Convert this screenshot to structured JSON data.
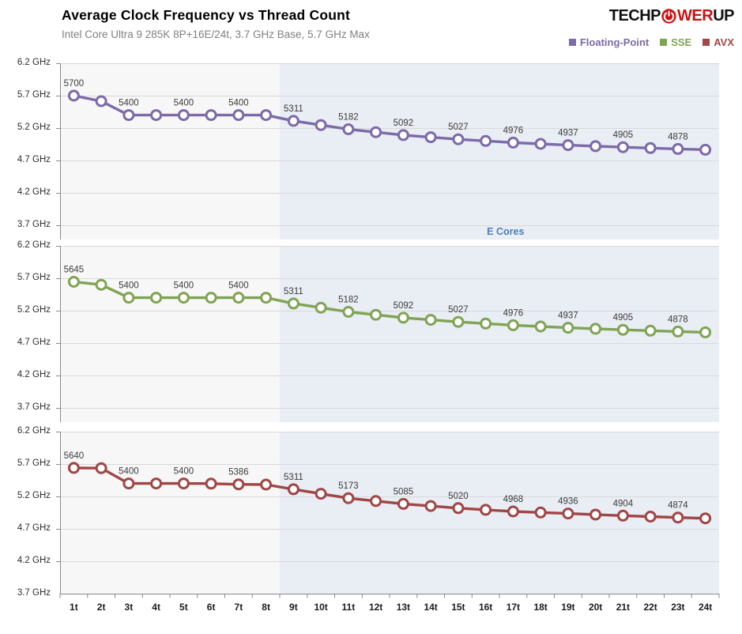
{
  "header": {
    "title": "Average Clock Frequency vs Thread Count",
    "subtitle": "Intel Core Ultra 9 285K 8P+16E/24t, 3.7 GHz Base, 5.7 GHz Max",
    "logo": {
      "prefix": "TECHP",
      "mid": "WER",
      "suffix": "UP",
      "red": "#cc1111",
      "black": "#111111"
    }
  },
  "legend": [
    {
      "label": "Floating-Point",
      "color": "#7d6aa8"
    },
    {
      "label": "SSE",
      "color": "#80a455"
    },
    {
      "label": "AVX",
      "color": "#a04646"
    }
  ],
  "chart_data": {
    "type": "line",
    "x": [
      "1t",
      "2t",
      "3t",
      "4t",
      "5t",
      "6t",
      "7t",
      "8t",
      "9t",
      "10t",
      "11t",
      "12t",
      "13t",
      "14t",
      "15t",
      "16t",
      "17t",
      "18t",
      "19t",
      "20t",
      "21t",
      "22t",
      "23t",
      "24t"
    ],
    "y_ticks": [
      "6.2 GHz",
      "5.7 GHz",
      "5.2 GHz",
      "4.7 GHz",
      "4.2 GHz",
      "3.7 GHz"
    ],
    "ylim": [
      3700,
      6200
    ],
    "unit": "MHz",
    "annotation": "E Cores",
    "ecores_start_index": 8,
    "legend_position": "top-right",
    "grid": true,
    "series": [
      {
        "name": "Floating-Point",
        "color": "#7d6aa8",
        "values": [
          5700,
          5615,
          5400,
          5400,
          5400,
          5400,
          5400,
          5400,
          5311,
          5246,
          5182,
          5137,
          5092,
          5059,
          5027,
          5001,
          4976,
          4956,
          4937,
          4921,
          4905,
          4891,
          4878,
          4866
        ],
        "labels": [
          5700,
          null,
          5400,
          null,
          5400,
          null,
          5400,
          null,
          5311,
          null,
          5182,
          null,
          5092,
          null,
          5027,
          null,
          4976,
          null,
          4937,
          null,
          4905,
          null,
          4878,
          null
        ]
      },
      {
        "name": "SSE",
        "color": "#80a455",
        "values": [
          5645,
          5600,
          5400,
          5400,
          5400,
          5400,
          5400,
          5400,
          5311,
          5246,
          5182,
          5137,
          5092,
          5059,
          5027,
          5001,
          4976,
          4956,
          4937,
          4921,
          4905,
          4891,
          4878,
          4866
        ],
        "labels": [
          5645,
          null,
          5400,
          null,
          5400,
          null,
          5400,
          null,
          5311,
          null,
          5182,
          null,
          5092,
          null,
          5027,
          null,
          4976,
          null,
          4937,
          null,
          4905,
          null,
          4878,
          null
        ]
      },
      {
        "name": "AVX",
        "color": "#a04646",
        "values": [
          5640,
          5636,
          5400,
          5400,
          5400,
          5397,
          5386,
          5383,
          5311,
          5242,
          5173,
          5129,
          5085,
          5052,
          5020,
          4994,
          4968,
          4952,
          4936,
          4920,
          4904,
          4889,
          4874,
          4862
        ],
        "labels": [
          5640,
          null,
          5400,
          null,
          5400,
          null,
          5386,
          null,
          5311,
          null,
          5173,
          null,
          5085,
          null,
          5020,
          null,
          4968,
          null,
          4936,
          null,
          4904,
          null,
          4874,
          null
        ]
      }
    ],
    "colors": {
      "plot_bg": "#f7f7f7",
      "ecores_bg": "#e9edf4",
      "gridline": "#d9d9d9",
      "axis": "#8a8a8a",
      "data_label": "#3c3c3c",
      "annotation_text": "#4d7fb8"
    }
  }
}
